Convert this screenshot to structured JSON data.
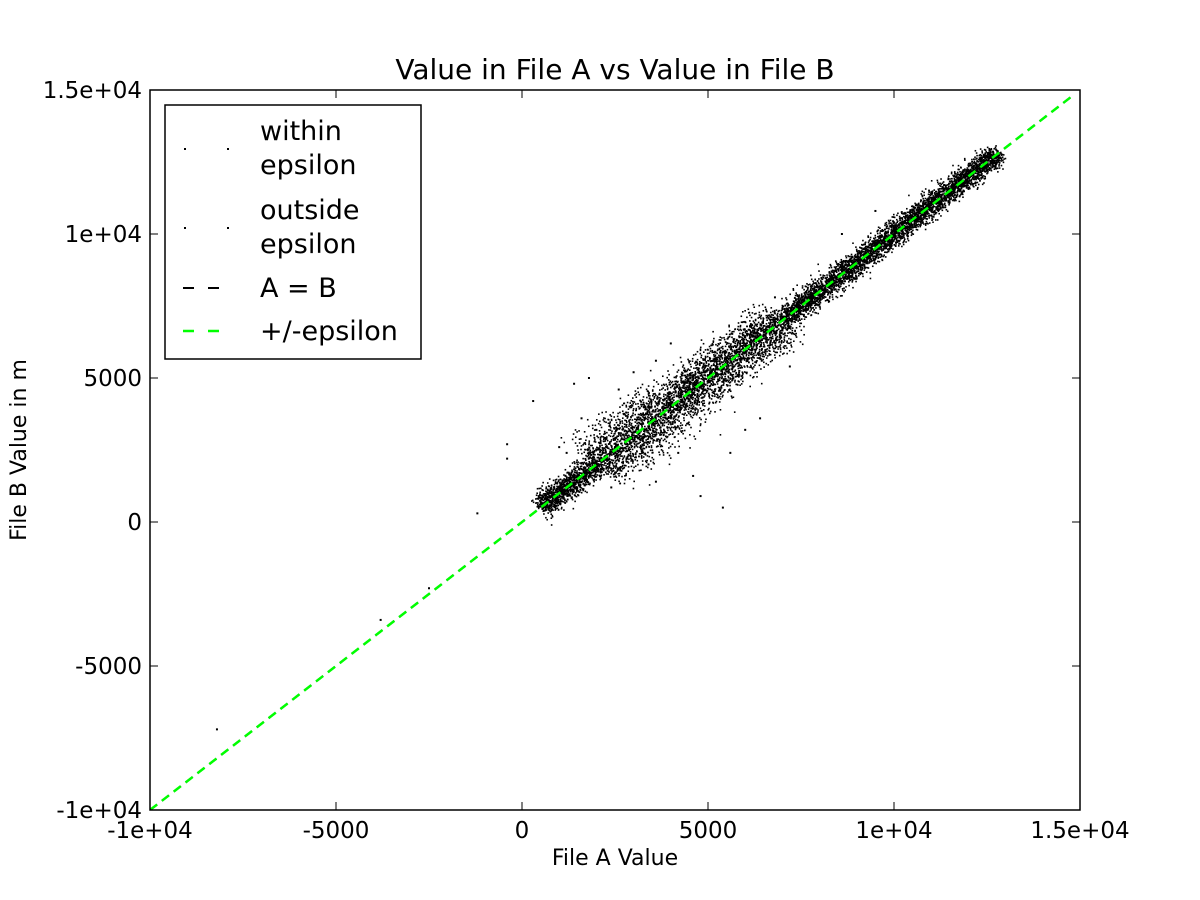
{
  "chart_data": {
    "type": "scatter",
    "title": "Value in File A vs Value in File B",
    "xlabel": "File A Value",
    "ylabel": "File B Value in m",
    "xlim": [
      -10000,
      15000
    ],
    "ylim": [
      -10000,
      15000
    ],
    "x_ticks": [
      -10000,
      -5000,
      0,
      5000,
      10000,
      15000
    ],
    "x_tick_labels": [
      "-1e+04",
      "-5000",
      "0",
      "5000",
      "1e+04",
      "1.5e+04"
    ],
    "y_ticks": [
      -10000,
      -5000,
      0,
      5000,
      10000,
      15000
    ],
    "y_tick_labels": [
      "-1e+04",
      "-5000",
      "0",
      "5000",
      "1e+04",
      "1.5e+04"
    ],
    "grid": false,
    "legend_position": "top-left",
    "series": [
      {
        "name": "within epsilon",
        "legend_lines": [
          "within",
          "epsilon"
        ],
        "kind": "points",
        "color": "#000000",
        "description_points_note": "dense cloud clustered along the A = B diagonal",
        "points": [
          [
            500,
            600
          ],
          [
            800,
            1000
          ],
          [
            1000,
            1200
          ],
          [
            1200,
            1100
          ],
          [
            1500,
            1600
          ],
          [
            1800,
            2000
          ],
          [
            2000,
            1900
          ],
          [
            2200,
            2400
          ],
          [
            2500,
            2600
          ],
          [
            2800,
            2700
          ],
          [
            3000,
            3100
          ],
          [
            3200,
            3400
          ],
          [
            3500,
            3400
          ],
          [
            3800,
            3900
          ],
          [
            4000,
            4100
          ],
          [
            4200,
            4000
          ],
          [
            4500,
            4600
          ],
          [
            4800,
            4700
          ],
          [
            5000,
            5100
          ],
          [
            5200,
            5300
          ],
          [
            5500,
            5400
          ],
          [
            5800,
            5900
          ],
          [
            6000,
            6100
          ],
          [
            6200,
            6000
          ],
          [
            6500,
            6600
          ],
          [
            6800,
            6900
          ],
          [
            7000,
            7100
          ],
          [
            7200,
            7000
          ],
          [
            7500,
            7600
          ],
          [
            7800,
            7700
          ],
          [
            8000,
            8100
          ],
          [
            8300,
            8200
          ],
          [
            8600,
            8700
          ],
          [
            9000,
            9100
          ],
          [
            9300,
            9200
          ],
          [
            9600,
            9700
          ],
          [
            10000,
            10100
          ],
          [
            10300,
            10200
          ],
          [
            10600,
            10700
          ],
          [
            11000,
            11100
          ],
          [
            11300,
            11200
          ],
          [
            11600,
            11700
          ],
          [
            12000,
            12000
          ],
          [
            12500,
            12700
          ]
        ]
      },
      {
        "name": "outside epsilon",
        "legend_lines": [
          "outside",
          "epsilon"
        ],
        "kind": "points",
        "color": "#000000",
        "points": [
          [
            -8200,
            -7200
          ],
          [
            -3800,
            -3400
          ],
          [
            -2500,
            -2300
          ],
          [
            -1200,
            300
          ],
          [
            -400,
            2200
          ],
          [
            -400,
            2700
          ],
          [
            300,
            4200
          ],
          [
            1400,
            4800
          ],
          [
            1800,
            5000
          ],
          [
            2600,
            4600
          ],
          [
            3000,
            5200
          ],
          [
            3600,
            5600
          ],
          [
            4000,
            6200
          ],
          [
            5400,
            500
          ],
          [
            6800,
            7800
          ],
          [
            9500,
            10800
          ],
          [
            1600,
            3600
          ],
          [
            2000,
            3200
          ],
          [
            2400,
            1200
          ],
          [
            3600,
            1400
          ],
          [
            4600,
            1600
          ],
          [
            4800,
            900
          ],
          [
            5600,
            2400
          ],
          [
            6000,
            3200
          ],
          [
            6400,
            3600
          ],
          [
            7200,
            5400
          ],
          [
            8600,
            10000
          ],
          [
            1000,
            2600
          ],
          [
            1200,
            2400
          ],
          [
            2800,
            3800
          ],
          [
            3400,
            2000
          ],
          [
            4200,
            2400
          ]
        ]
      },
      {
        "name": "A = B",
        "kind": "line",
        "color": "#000000",
        "dash": "dashed",
        "x": [
          -10000,
          14750
        ],
        "y": [
          -10000,
          14750
        ]
      },
      {
        "name": "+/-epsilon",
        "kind": "line",
        "color": "#00ff00",
        "dash": "dashed",
        "x": [
          -10000,
          14750
        ],
        "y": [
          -10000,
          14750
        ]
      }
    ]
  }
}
